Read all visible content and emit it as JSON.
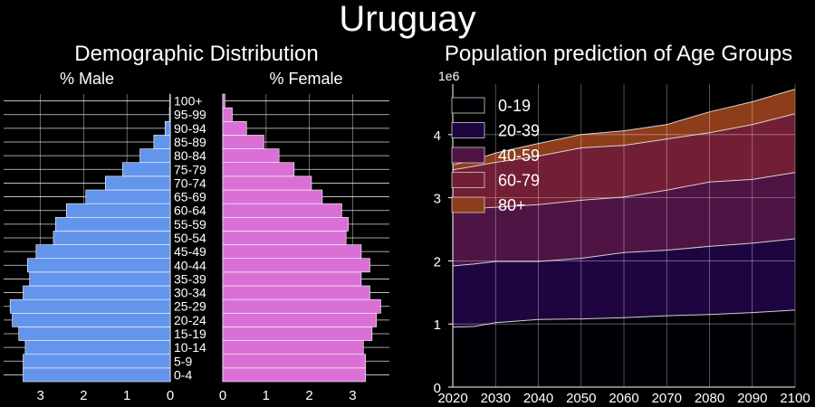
{
  "title": "Uruguay",
  "chart_data": [
    {
      "type": "bar",
      "orientation": "horizontal-pyramid",
      "title": "Demographic Distribution",
      "categories": [
        "0-4",
        "5-9",
        "10-14",
        "15-19",
        "20-24",
        "25-29",
        "30-34",
        "35-39",
        "40-44",
        "45-49",
        "50-54",
        "55-59",
        "60-64",
        "65-69",
        "70-74",
        "75-79",
        "80-84",
        "85-89",
        "90-94",
        "95-99",
        "100+"
      ],
      "series": [
        {
          "name": "% Male",
          "color": "#6495ed",
          "values": [
            3.4,
            3.4,
            3.35,
            3.5,
            3.65,
            3.7,
            3.4,
            3.25,
            3.3,
            3.1,
            2.7,
            2.65,
            2.4,
            1.95,
            1.5,
            1.1,
            0.7,
            0.38,
            0.12,
            0.02,
            0.01
          ]
        },
        {
          "name": "% Female",
          "color": "#da70d6",
          "values": [
            3.3,
            3.3,
            3.25,
            3.45,
            3.55,
            3.65,
            3.4,
            3.2,
            3.4,
            3.2,
            2.85,
            2.9,
            2.75,
            2.3,
            2.05,
            1.65,
            1.3,
            0.95,
            0.55,
            0.22,
            0.05
          ]
        }
      ],
      "xlim_male": [
        3.85,
        0
      ],
      "xlim_female": [
        0,
        3.85
      ],
      "male_ticks": [
        "3",
        "2",
        "1",
        "0"
      ],
      "female_ticks": [
        "0",
        "1",
        "2",
        "3"
      ],
      "grid": true
    },
    {
      "type": "area",
      "stacked": true,
      "title": "Population prediction of Age Groups",
      "scale_label": "1e6",
      "x": [
        2020,
        2025,
        2030,
        2040,
        2050,
        2060,
        2070,
        2080,
        2090,
        2100
      ],
      "series": [
        {
          "name": "0-19",
          "color": "#000004",
          "values": [
            0.95,
            0.96,
            1.02,
            1.07,
            1.08,
            1.1,
            1.13,
            1.15,
            1.18,
            1.22
          ]
        },
        {
          "name": "20-39",
          "color": "#1f0540",
          "values": [
            0.97,
            0.99,
            0.97,
            0.92,
            0.96,
            1.03,
            1.04,
            1.08,
            1.1,
            1.13
          ]
        },
        {
          "name": "40-59",
          "color": "#4e1444",
          "values": [
            0.86,
            0.88,
            0.86,
            0.9,
            0.92,
            0.88,
            0.95,
            1.02,
            1.01,
            1.05
          ]
        },
        {
          "name": "60-79",
          "color": "#721f36",
          "values": [
            0.66,
            0.67,
            0.71,
            0.77,
            0.83,
            0.82,
            0.81,
            0.78,
            0.87,
            0.93
          ]
        },
        {
          "name": "80+",
          "color": "#8e3d1a",
          "values": [
            0.08,
            0.1,
            0.15,
            0.2,
            0.21,
            0.23,
            0.23,
            0.33,
            0.36,
            0.39
          ]
        }
      ],
      "ylim": [
        0,
        4.8
      ],
      "yticks": [
        0,
        1,
        2,
        3,
        4
      ],
      "xticks": [
        2020,
        2030,
        2040,
        2050,
        2060,
        2070,
        2080,
        2090,
        2100
      ],
      "legend": "top-left",
      "grid": true
    }
  ]
}
